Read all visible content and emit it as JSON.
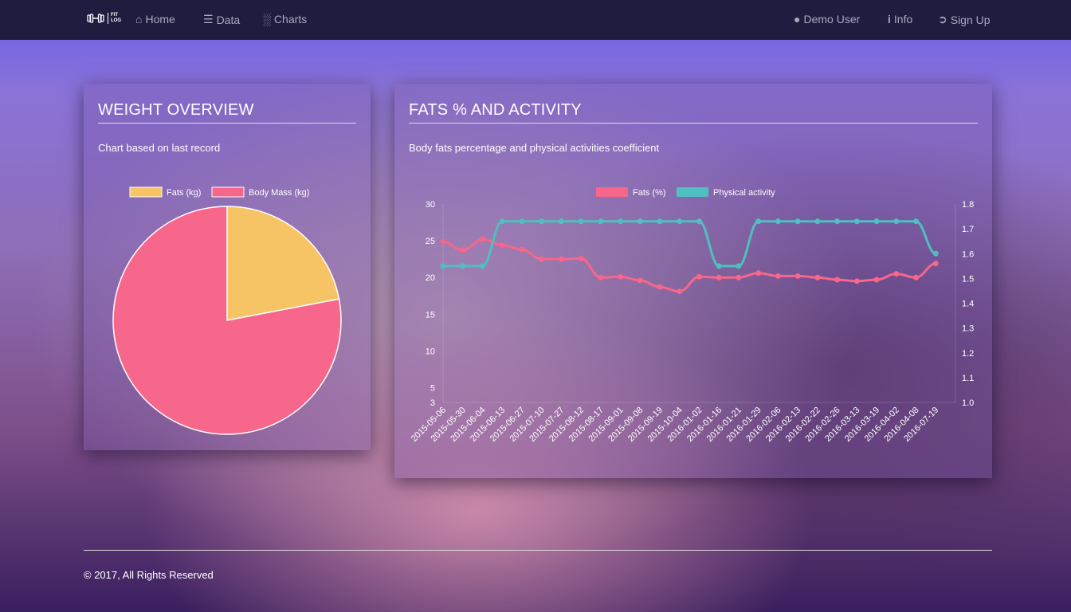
{
  "nav": {
    "logo": "FIT LOG",
    "home": "Home",
    "data": "Data",
    "charts": "Charts",
    "user": "Demo User",
    "info": "Info",
    "signup": "Sign Up"
  },
  "weight_card": {
    "title": "WEIGHT OVERVIEW",
    "subtitle": "Chart based on last record"
  },
  "fats_card": {
    "title": "FATS % AND ACTIVITY",
    "subtitle": "Body fats percentage and physical activities coefficient"
  },
  "footer": {
    "text": "© 2017, All Rights Reserved"
  },
  "chart_data": [
    {
      "type": "pie",
      "categories": [
        "Fats (kg)",
        "Body Mass (kg)"
      ],
      "values": [
        22,
        78
      ],
      "colors": [
        "#f6c465",
        "#f7668b"
      ],
      "legend": "top"
    },
    {
      "type": "line",
      "legend": "top",
      "x": [
        "2015-05-06",
        "2015-05-30",
        "2015-06-04",
        "2015-06-13",
        "2015-06-27",
        "2015-07-10",
        "2015-07-27",
        "2015-08-12",
        "2015-08-17",
        "2015-09-01",
        "2015-09-08",
        "2015-09-19",
        "2015-10-04",
        "2016-01-02",
        "2016-01-16",
        "2016-01-21",
        "2016-01-29",
        "2016-02-06",
        "2016-02-13",
        "2016-02-22",
        "2016-02-26",
        "2016-03-13",
        "2016-03-19",
        "2016-04-02",
        "2016-04-08",
        "2016-07-19"
      ],
      "series": [
        {
          "name": "Fats (%)",
          "axis": "left",
          "color": "#f7668b",
          "values": [
            24.9,
            23.7,
            25.2,
            24.4,
            23.8,
            22.5,
            22.5,
            22.6,
            20.0,
            20.1,
            19.6,
            18.7,
            18.1,
            20.1,
            20.0,
            20.0,
            20.6,
            20.2,
            20.2,
            20.0,
            19.7,
            19.5,
            19.7,
            20.5,
            20.0,
            21.9
          ]
        },
        {
          "name": "Physical activity",
          "axis": "right",
          "color": "#4fc0bf",
          "values": [
            1.55,
            1.55,
            1.55,
            1.73,
            1.73,
            1.73,
            1.73,
            1.73,
            1.73,
            1.73,
            1.73,
            1.73,
            1.73,
            1.73,
            1.55,
            1.55,
            1.73,
            1.73,
            1.73,
            1.73,
            1.73,
            1.73,
            1.73,
            1.73,
            1.73,
            1.6
          ]
        }
      ],
      "yleft": {
        "ylim": [
          3,
          30
        ],
        "ticks": [
          "30",
          "25",
          "20",
          "15",
          "10",
          "5",
          "3"
        ]
      },
      "yright": {
        "ylim": [
          1.0,
          1.8
        ],
        "ticks": [
          "1.8",
          "1.7",
          "1.6",
          "1.5",
          "1.4",
          "1.3",
          "1.2",
          "1.1",
          "1.0"
        ]
      }
    }
  ]
}
